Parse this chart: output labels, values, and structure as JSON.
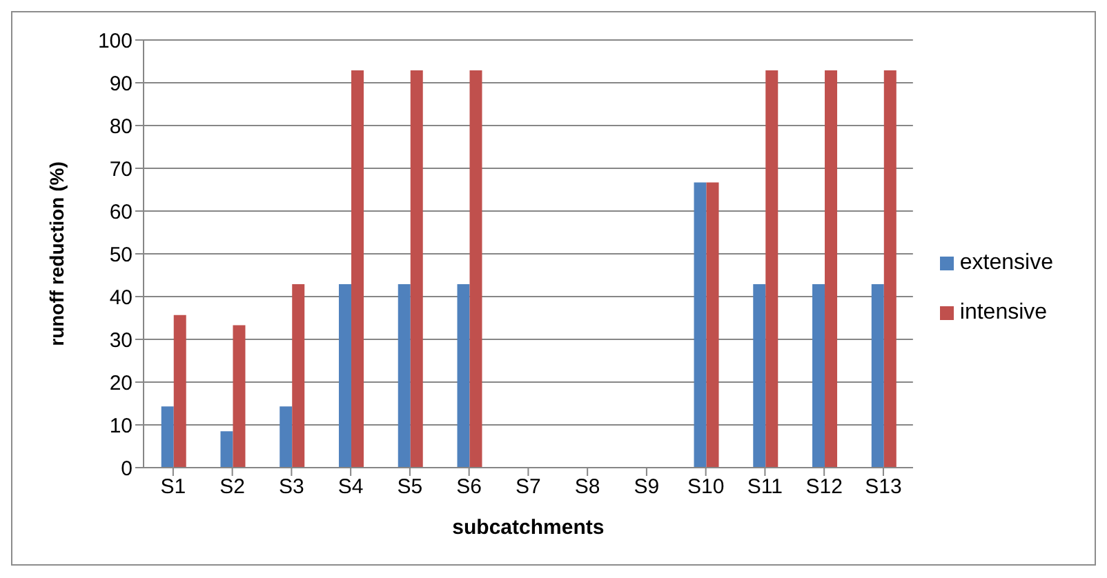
{
  "chart_data": {
    "type": "bar",
    "xlabel": "subcatchments",
    "ylabel": "runoff reduction (%)",
    "categories": [
      "S1",
      "S2",
      "S3",
      "S4",
      "S5",
      "S6",
      "S7",
      "S8",
      "S9",
      "S10",
      "S11",
      "S12",
      "S13"
    ],
    "series": [
      {
        "name": "extensive",
        "color": "#4f81bd",
        "values": [
          14.3,
          8.5,
          14.3,
          42.9,
          42.9,
          42.9,
          0,
          0,
          0,
          66.7,
          42.9,
          42.9,
          42.9
        ]
      },
      {
        "name": "intensive",
        "color": "#c0504d",
        "values": [
          35.7,
          33.3,
          42.9,
          92.9,
          92.9,
          92.9,
          0,
          0,
          0,
          66.7,
          92.9,
          92.9,
          92.9
        ]
      }
    ],
    "ylim": [
      0,
      100
    ],
    "yticks": [
      0,
      10,
      20,
      30,
      40,
      50,
      60,
      70,
      80,
      90,
      100
    ],
    "grid": "y",
    "legend": "right"
  }
}
